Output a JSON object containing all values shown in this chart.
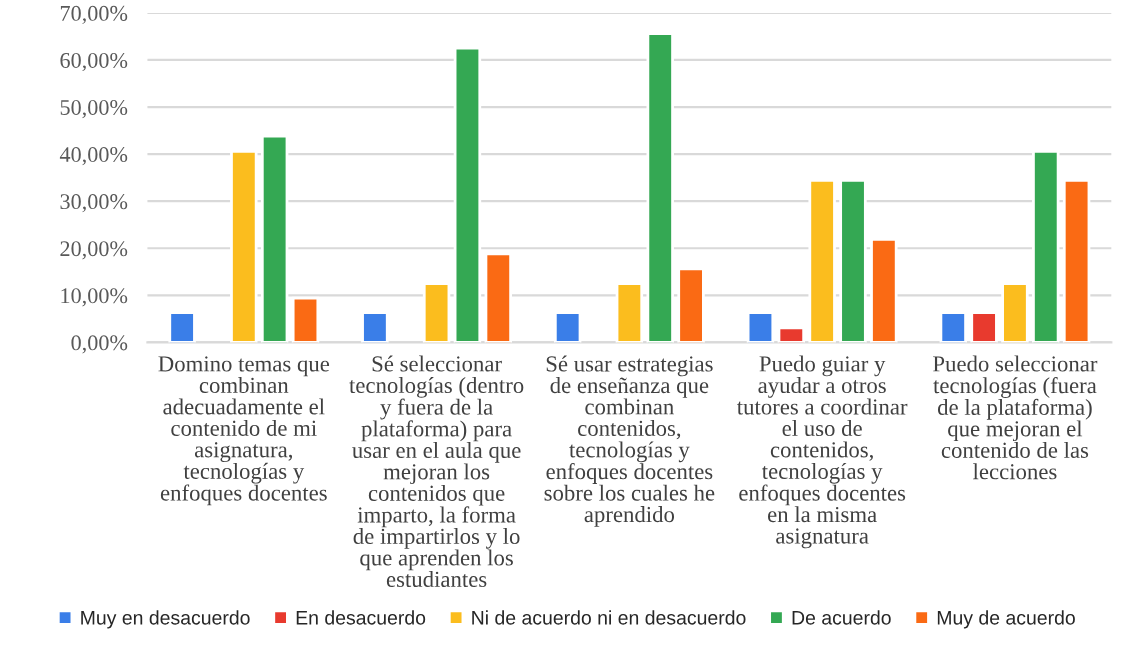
{
  "chart_data": {
    "type": "bar",
    "categories": [
      "Domino temas que combinan adecuadamente el contenido de mi asignatura, tecnologías y enfoques docentes",
      "Sé seleccionar tecnologías (dentro y fuera de la plataforma) para usar en el aula que mejoran los contenidos que imparto, la forma de impartirlos y lo que aprenden los estudiantes",
      "Sé usar estrategias de enseñanza que combinan contenidos, tecnologías y enfoques docentes sobre los cuales he aprendido",
      "Puedo guiar y ayudar a otros tutores a coordinar el uso de contenidos, tecnologías y enfoques docentes en la misma asignatura",
      "Puedo seleccionar tecnologías (fuera de la plataforma) que mejoran el contenido de las lecciones"
    ],
    "series": [
      {
        "name": "Muy en desacuerdo",
        "color": "#3a7ee8",
        "values": [
          6.3,
          6.3,
          6.3,
          6.3,
          6.3
        ]
      },
      {
        "name": "En desacuerdo",
        "color": "#e83a2e",
        "values": [
          null,
          null,
          null,
          3.1,
          6.3
        ]
      },
      {
        "name": "Ni de acuerdo ni en desacuerdo",
        "color": "#fbbd1e",
        "values": [
          40.6,
          12.5,
          12.5,
          34.4,
          12.5
        ]
      },
      {
        "name": "De acuerdo",
        "color": "#34a853",
        "values": [
          43.8,
          62.5,
          65.6,
          34.4,
          40.6
        ]
      },
      {
        "name": "Muy de acuerdo",
        "color": "#fa6a14",
        "values": [
          9.4,
          18.8,
          15.6,
          21.9,
          34.4
        ]
      }
    ],
    "ylim": [
      0,
      70
    ],
    "yticks": [
      {
        "value": 0,
        "label": "0,00%"
      },
      {
        "value": 10,
        "label": "10,00%"
      },
      {
        "value": 20,
        "label": "20,00%"
      },
      {
        "value": 30,
        "label": "30,00%"
      },
      {
        "value": 40,
        "label": "40,00%"
      },
      {
        "value": 50,
        "label": "50,00%"
      },
      {
        "value": 60,
        "label": "60,00%"
      },
      {
        "value": 70,
        "label": "70,00%"
      }
    ],
    "grid": "y",
    "legend": "bottom"
  }
}
